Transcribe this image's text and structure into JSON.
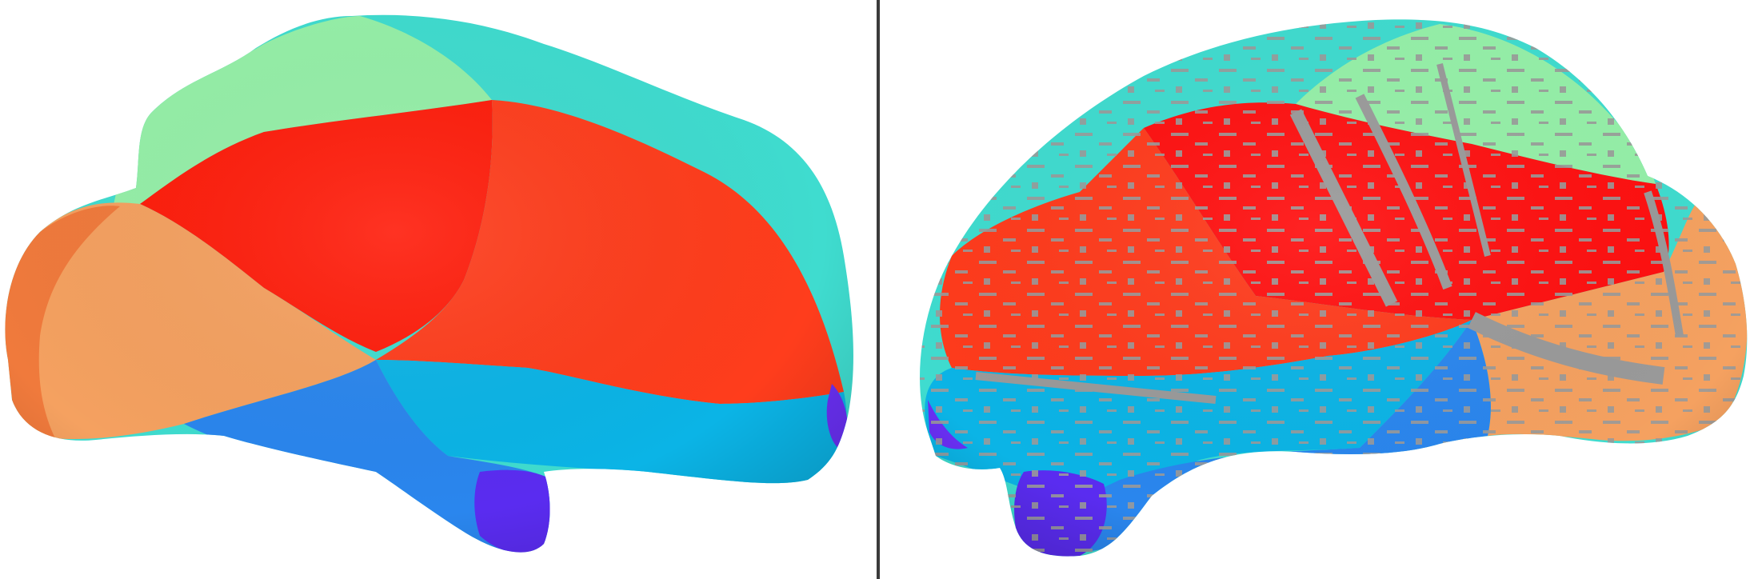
{
  "figure": {
    "panels": [
      {
        "view": "smooth-surface",
        "hemisphere": "left-lateral"
      },
      {
        "view": "inflated-surface-with-sulci",
        "hemisphere": "right-lateral"
      }
    ],
    "colors": {
      "background": "#ffffff",
      "divider": "#3a3a3a",
      "frontal_green": "#95f0a8",
      "superior_cyan": "#3fdccf",
      "parietal_red": "#ff1c0a",
      "central_orange_red": "#ff3d1c",
      "occipital_orange": "#f5a160",
      "occipital_tip": "#f07a3c",
      "temporal_sky": "#0bb4e6",
      "temporal_blue": "#2a86ee",
      "pole_violet": "#5a2cf0",
      "sulcal_gray": "#9a9a9a"
    }
  }
}
